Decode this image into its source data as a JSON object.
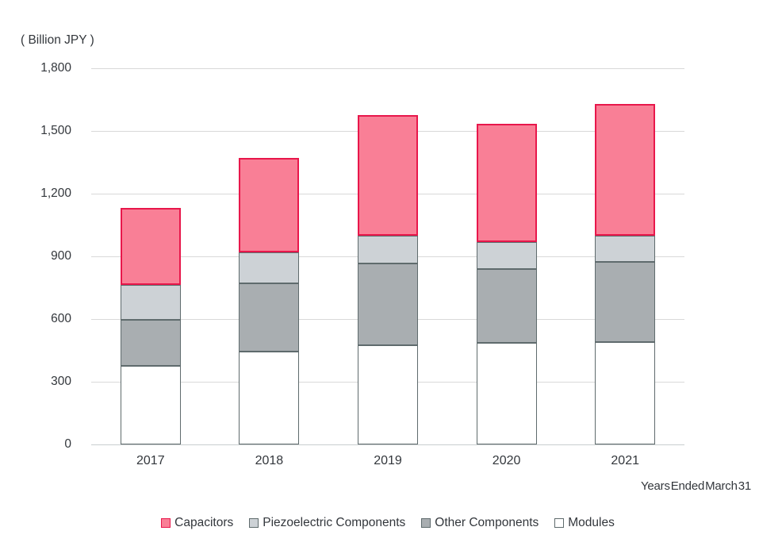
{
  "chart_data": {
    "type": "stacked-bar",
    "unit_label": "( Billion JPY )",
    "xlabel": "Years Ended March 31",
    "categories": [
      "2017",
      "2018",
      "2019",
      "2020",
      "2021"
    ],
    "series_bottom_to_top": [
      {
        "name": "Modules",
        "fill": "#FFFFFF",
        "border": "#5F6B6D",
        "values": [
          375,
          445,
          475,
          485,
          490
        ]
      },
      {
        "name": "Other Components",
        "fill": "#A9AEB1",
        "border": "#5F6B6D",
        "values": [
          220,
          325,
          390,
          355,
          385
        ]
      },
      {
        "name": "Piezoelectric Components",
        "fill": "#CDD2D6",
        "border": "#5F6B6D",
        "values": [
          170,
          150,
          135,
          130,
          125
        ]
      },
      {
        "name": "Capacitors",
        "fill": "#F97F96",
        "border": "#E8174B",
        "values": [
          365,
          450,
          575,
          565,
          630
        ]
      }
    ],
    "totals": [
      1130,
      1370,
      1575,
      1535,
      1630
    ],
    "legend_order": [
      "Capacitors",
      "Piezoelectric Components",
      "Other Components",
      "Modules"
    ],
    "ylim": [
      0,
      1800
    ],
    "ytick_interval": 300,
    "ytick_labels": [
      "0",
      "300",
      "600",
      "900",
      "1,200",
      "1,500",
      "1,800"
    ],
    "gridline_color": "#D9D9D9",
    "axis_text_color": "#33373C",
    "legend_position": "bottom-center",
    "grid": "horizontal-only"
  }
}
